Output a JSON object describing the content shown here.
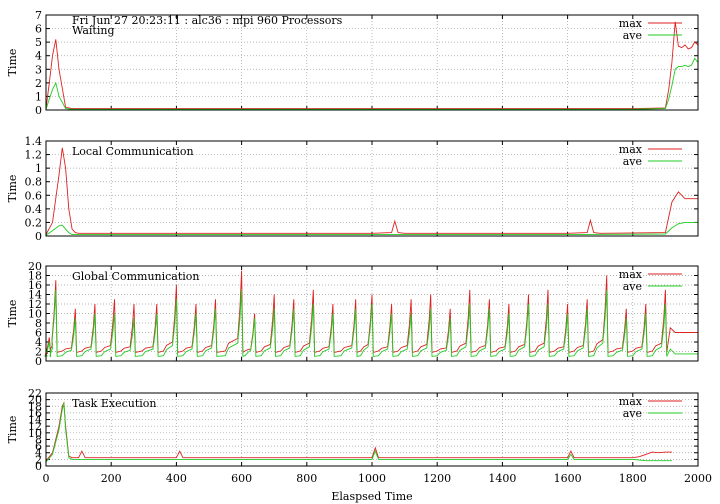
{
  "header": {
    "title": "Fri Jun 27 20:23:11 : alc36 : mpi 960 Processors"
  },
  "legend": {
    "max_label": "max",
    "ave_label": "ave"
  },
  "colors": {
    "max": "#dd2222",
    "ave": "#22cc22"
  },
  "chart_data": [
    {
      "type": "line",
      "title": "Waiting",
      "xlabel": "",
      "ylabel": "Time",
      "xlim": [
        0,
        2000
      ],
      "ylim": [
        0,
        7
      ],
      "yticks": [
        0,
        1,
        2,
        3,
        4,
        5,
        6,
        7
      ],
      "xticks": [],
      "grid": true,
      "legend": "top-right",
      "series": [
        {
          "name": "max",
          "x": [
            0,
            10,
            20,
            30,
            40,
            60,
            80,
            100,
            200,
            400,
            1000,
            1800,
            1900,
            1910,
            1920,
            1930,
            1940,
            1950,
            1960,
            1970,
            1980,
            1990,
            2000
          ],
          "y": [
            0.1,
            2.0,
            4.0,
            5.2,
            3.0,
            0.2,
            0.1,
            0.1,
            0.1,
            0.1,
            0.1,
            0.1,
            0.15,
            1.5,
            3.5,
            6.5,
            4.7,
            4.6,
            4.8,
            4.5,
            4.6,
            5.0,
            4.8
          ]
        },
        {
          "name": "ave",
          "x": [
            0,
            10,
            20,
            30,
            40,
            60,
            80,
            100,
            200,
            400,
            1000,
            1800,
            1900,
            1910,
            1920,
            1930,
            1940,
            1950,
            1960,
            1970,
            1980,
            1990,
            2000
          ],
          "y": [
            0.05,
            0.8,
            1.5,
            2.0,
            1.0,
            0.1,
            0.05,
            0.05,
            0.05,
            0.05,
            0.05,
            0.05,
            0.1,
            0.8,
            1.8,
            3.0,
            3.2,
            3.2,
            3.3,
            3.2,
            3.3,
            3.8,
            3.5
          ]
        }
      ]
    },
    {
      "type": "line",
      "title": "Local Communication",
      "xlabel": "",
      "ylabel": "Time",
      "xlim": [
        0,
        2000
      ],
      "ylim": [
        0,
        1.4
      ],
      "yticks": [
        0,
        0.2,
        0.4,
        0.6,
        0.8,
        1,
        1.2,
        1.4
      ],
      "xticks": [],
      "grid": true,
      "legend": "top-right",
      "series": [
        {
          "name": "max",
          "x": [
            0,
            20,
            40,
            50,
            60,
            70,
            80,
            90,
            100,
            400,
            1000,
            1060,
            1070,
            1080,
            1100,
            1600,
            1660,
            1670,
            1680,
            1700,
            1900,
            1920,
            1940,
            1950,
            1960,
            1970,
            2000
          ],
          "y": [
            0.02,
            0.2,
            0.9,
            1.3,
            1.0,
            0.4,
            0.1,
            0.05,
            0.04,
            0.04,
            0.04,
            0.05,
            0.22,
            0.05,
            0.04,
            0.04,
            0.05,
            0.23,
            0.05,
            0.04,
            0.05,
            0.5,
            0.65,
            0.6,
            0.55,
            0.55,
            0.55
          ]
        },
        {
          "name": "ave",
          "x": [
            0,
            20,
            40,
            50,
            60,
            70,
            80,
            100,
            400,
            1000,
            1600,
            1900,
            1920,
            1940,
            1960,
            2000
          ],
          "y": [
            0.01,
            0.08,
            0.15,
            0.16,
            0.1,
            0.05,
            0.02,
            0.02,
            0.02,
            0.02,
            0.02,
            0.03,
            0.12,
            0.18,
            0.2,
            0.2
          ]
        }
      ]
    },
    {
      "type": "line",
      "title": "Global Communication",
      "xlabel": "",
      "ylabel": "Time",
      "xlim": [
        0,
        2000
      ],
      "ylim": [
        0,
        20
      ],
      "yticks": [
        0,
        2,
        4,
        6,
        8,
        10,
        12,
        14,
        16,
        18,
        20
      ],
      "xticks": [],
      "grid": true,
      "legend": "top-right",
      "spike_positions": [
        10,
        30,
        90,
        150,
        210,
        270,
        340,
        400,
        460,
        520,
        600,
        640,
        700,
        760,
        820,
        880,
        950,
        1000,
        1060,
        1120,
        1180,
        1240,
        1300,
        1360,
        1420,
        1480,
        1540,
        1600,
        1660,
        1720,
        1780,
        1840,
        1900
      ],
      "series": [
        {
          "name": "max",
          "spike_heights": [
            5,
            17,
            11,
            12,
            13,
            12,
            12,
            16,
            12,
            13,
            19,
            10,
            14,
            13,
            15,
            12,
            13,
            14,
            12,
            13,
            14,
            11,
            15,
            13,
            12,
            14,
            15,
            12,
            13,
            18,
            11,
            12,
            15
          ],
          "baseline": 1.5,
          "tail": 6
        },
        {
          "name": "ave",
          "spike_heights": [
            4,
            15,
            9,
            10,
            10,
            9,
            10,
            13,
            10,
            11,
            15,
            9,
            11,
            11,
            12,
            10,
            11,
            12,
            10,
            10,
            11,
            9,
            12,
            11,
            10,
            12,
            12,
            10,
            11,
            15,
            9,
            10,
            12
          ],
          "baseline": 0.8,
          "tail": 1.5
        }
      ]
    },
    {
      "type": "line",
      "title": "Task Execution",
      "xlabel": "Elaspsed Time",
      "ylabel": "Time",
      "xlim": [
        0,
        2000
      ],
      "ylim": [
        0,
        22
      ],
      "yticks": [
        0,
        2,
        4,
        6,
        8,
        10,
        12,
        14,
        16,
        18,
        20,
        22
      ],
      "xticks": [
        0,
        200,
        400,
        600,
        800,
        1000,
        1200,
        1400,
        1600,
        1800,
        2000
      ],
      "grid": true,
      "legend": "top-right",
      "series": [
        {
          "name": "max",
          "x": [
            0,
            20,
            40,
            50,
            55,
            60,
            70,
            80,
            100,
            110,
            120,
            400,
            410,
            420,
            1000,
            1010,
            1020,
            1600,
            1610,
            1620,
            1800,
            1820,
            1840,
            1860,
            1880,
            1900,
            1920
          ],
          "y": [
            1.5,
            4,
            12,
            18,
            19,
            12,
            3,
            2.5,
            2.5,
            4.5,
            2.5,
            2.5,
            4.5,
            2.5,
            2.5,
            5.5,
            2.5,
            2.5,
            4.5,
            2.5,
            2.5,
            2.8,
            3.5,
            4.2,
            4.0,
            4.2,
            4.2
          ]
        },
        {
          "name": "ave",
          "x": [
            0,
            20,
            40,
            50,
            55,
            60,
            70,
            80,
            100,
            400,
            1000,
            1010,
            1020,
            1600,
            1610,
            1620,
            1800,
            1840,
            1880,
            1920
          ],
          "y": [
            1.2,
            3.5,
            11,
            17,
            19,
            11,
            2.5,
            2,
            2,
            2,
            2,
            4.5,
            2,
            2,
            3.5,
            2,
            2,
            1.6,
            1.6,
            1.6
          ]
        }
      ]
    }
  ]
}
